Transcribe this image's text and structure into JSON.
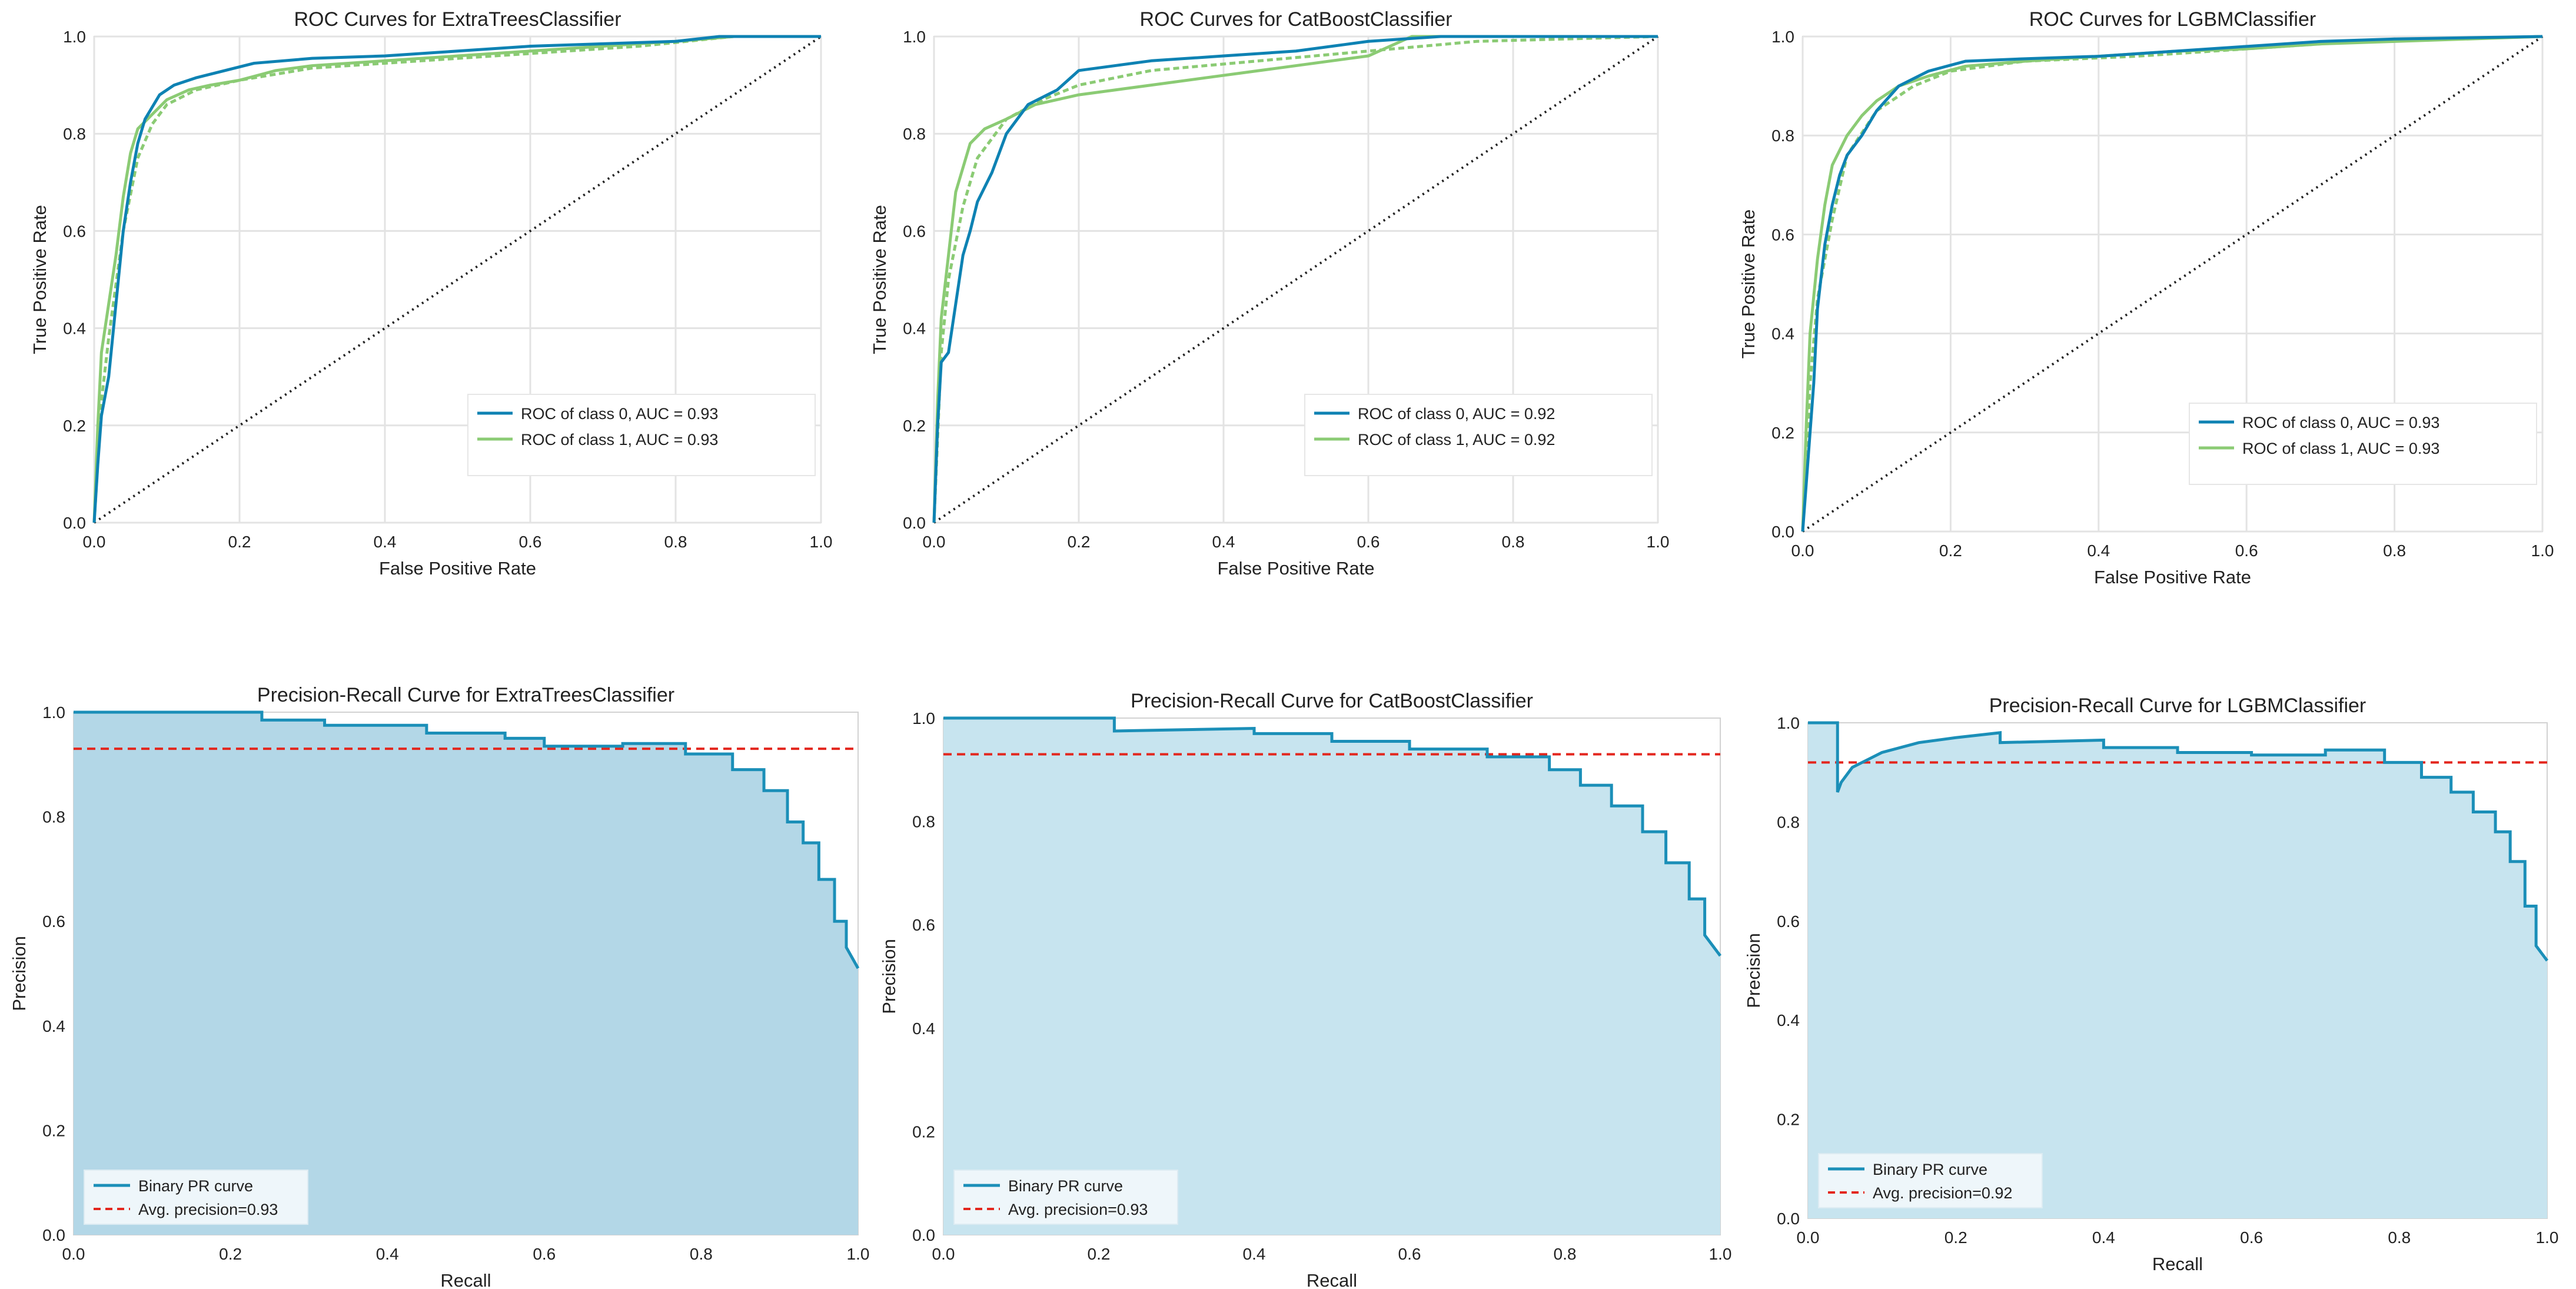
{
  "palette": {
    "class0": "#0e82b3",
    "class1": "#8bcb74",
    "diagonal": "#222222",
    "grid": "#e3e3e3",
    "avg": "#e3261d",
    "pr_line": "#1b8fb8",
    "pr_fill_dark": "#b3d7e7",
    "pr_fill_light": "#c7e4ef"
  },
  "chart_data": [
    {
      "id": "roc-extratrees",
      "type": "line",
      "title": "ROC Curves for ExtraTreesClassifier",
      "xlabel": "False Positive Rate",
      "ylabel": "True Positive Rate",
      "xlim": [
        0,
        1
      ],
      "ylim": [
        0,
        1
      ],
      "xticks": [
        "0.0",
        "0.2",
        "0.4",
        "0.6",
        "0.8",
        "1.0"
      ],
      "yticks": [
        "0.0",
        "0.2",
        "0.4",
        "0.6",
        "0.8",
        "1.0"
      ],
      "grid": true,
      "legend": "lower-right",
      "series": [
        {
          "name": "ROC of class 0, AUC = 0.93",
          "color_key": "class0",
          "dash": "",
          "x": [
            0,
            0.005,
            0.01,
            0.02,
            0.03,
            0.04,
            0.05,
            0.06,
            0.07,
            0.09,
            0.11,
            0.14,
            0.18,
            0.22,
            0.3,
            0.4,
            0.5,
            0.6,
            0.7,
            0.8,
            0.86,
            1.0
          ],
          "y": [
            0,
            0.12,
            0.22,
            0.3,
            0.45,
            0.6,
            0.7,
            0.78,
            0.83,
            0.88,
            0.9,
            0.915,
            0.93,
            0.945,
            0.955,
            0.96,
            0.97,
            0.98,
            0.985,
            0.99,
            1.0,
            1.0
          ]
        },
        {
          "name": "ROC of class 1, AUC = 0.93",
          "color_key": "class1",
          "dash": "",
          "x": [
            0,
            0.005,
            0.01,
            0.02,
            0.03,
            0.04,
            0.05,
            0.06,
            0.08,
            0.1,
            0.13,
            0.16,
            0.2,
            0.25,
            0.3,
            0.4,
            0.5,
            0.6,
            0.7,
            0.8,
            0.88,
            1.0
          ],
          "y": [
            0,
            0.2,
            0.35,
            0.45,
            0.55,
            0.67,
            0.76,
            0.81,
            0.84,
            0.87,
            0.89,
            0.9,
            0.91,
            0.93,
            0.94,
            0.95,
            0.96,
            0.97,
            0.98,
            0.99,
            1.0,
            1.0
          ]
        },
        {
          "name": "",
          "color_key": "class1",
          "dash": "10,6",
          "x": [
            0,
            0.01,
            0.02,
            0.04,
            0.06,
            0.08,
            0.1,
            0.14,
            0.2,
            0.3,
            0.45,
            0.6,
            0.75,
            0.88,
            1.0
          ],
          "y": [
            0,
            0.25,
            0.38,
            0.6,
            0.75,
            0.82,
            0.86,
            0.89,
            0.91,
            0.935,
            0.95,
            0.965,
            0.98,
            1.0,
            1.0
          ]
        }
      ],
      "diagonal": true
    },
    {
      "id": "roc-catboost",
      "type": "line",
      "title": "ROC Curves for CatBoostClassifier",
      "xlabel": "False Positive Rate",
      "ylabel": "True Positive Rate",
      "xlim": [
        0,
        1
      ],
      "ylim": [
        0,
        1
      ],
      "xticks": [
        "0.0",
        "0.2",
        "0.4",
        "0.6",
        "0.8",
        "1.0"
      ],
      "yticks": [
        "0.0",
        "0.2",
        "0.4",
        "0.6",
        "0.8",
        "1.0"
      ],
      "grid": true,
      "legend": "lower-right",
      "series": [
        {
          "name": "ROC of class 0, AUC = 0.92",
          "color_key": "class0",
          "dash": "",
          "x": [
            0,
            0.005,
            0.01,
            0.02,
            0.03,
            0.04,
            0.05,
            0.06,
            0.08,
            0.1,
            0.13,
            0.17,
            0.2,
            0.25,
            0.3,
            0.4,
            0.5,
            0.6,
            0.7,
            0.8,
            1.0
          ],
          "y": [
            0,
            0.2,
            0.33,
            0.35,
            0.45,
            0.55,
            0.6,
            0.66,
            0.72,
            0.8,
            0.86,
            0.89,
            0.93,
            0.94,
            0.95,
            0.96,
            0.97,
            0.99,
            1.0,
            1.0,
            1.0
          ]
        },
        {
          "name": "ROC of class 1, AUC = 0.92",
          "color_key": "class1",
          "dash": "",
          "x": [
            0,
            0.005,
            0.01,
            0.02,
            0.03,
            0.05,
            0.07,
            0.1,
            0.14,
            0.2,
            0.25,
            0.3,
            0.4,
            0.5,
            0.6,
            0.66,
            0.8,
            1.0
          ],
          "y": [
            0,
            0.25,
            0.42,
            0.55,
            0.68,
            0.78,
            0.81,
            0.83,
            0.86,
            0.88,
            0.89,
            0.9,
            0.92,
            0.94,
            0.96,
            1.0,
            1.0,
            1.0
          ]
        },
        {
          "name": "",
          "color_key": "class1",
          "dash": "10,6",
          "x": [
            0,
            0.01,
            0.02,
            0.04,
            0.06,
            0.1,
            0.15,
            0.2,
            0.3,
            0.45,
            0.6,
            0.75,
            1.0
          ],
          "y": [
            0,
            0.35,
            0.5,
            0.65,
            0.75,
            0.83,
            0.87,
            0.9,
            0.93,
            0.95,
            0.97,
            0.99,
            1.0
          ]
        }
      ],
      "diagonal": true
    },
    {
      "id": "roc-lgbm",
      "type": "line",
      "title": "ROC Curves for LGBMClassifier",
      "xlabel": "False Positive Rate",
      "ylabel": "True Positive Rate",
      "xlim": [
        0,
        1
      ],
      "ylim": [
        0,
        1
      ],
      "xticks": [
        "0.0",
        "0.2",
        "0.4",
        "0.6",
        "0.8",
        "1.0"
      ],
      "yticks": [
        "0.0",
        "0.2",
        "0.4",
        "0.6",
        "0.8",
        "1.0"
      ],
      "grid": true,
      "legend": "lower-right",
      "series": [
        {
          "name": "ROC of class 0, AUC = 0.93",
          "color_key": "class0",
          "dash": "",
          "x": [
            0,
            0.005,
            0.01,
            0.015,
            0.02,
            0.03,
            0.04,
            0.05,
            0.06,
            0.08,
            0.1,
            0.13,
            0.17,
            0.22,
            0.3,
            0.4,
            0.5,
            0.6,
            0.7,
            0.8,
            1.0
          ],
          "y": [
            0,
            0.1,
            0.2,
            0.3,
            0.45,
            0.58,
            0.66,
            0.72,
            0.76,
            0.8,
            0.85,
            0.9,
            0.93,
            0.95,
            0.955,
            0.96,
            0.97,
            0.98,
            0.99,
            0.995,
            1.0
          ]
        },
        {
          "name": "ROC of class 1, AUC = 0.93",
          "color_key": "class1",
          "dash": "",
          "x": [
            0,
            0.005,
            0.01,
            0.02,
            0.03,
            0.04,
            0.06,
            0.08,
            0.1,
            0.13,
            0.17,
            0.22,
            0.3,
            0.4,
            0.5,
            0.6,
            0.7,
            0.8,
            1.0
          ],
          "y": [
            0,
            0.22,
            0.4,
            0.55,
            0.66,
            0.74,
            0.8,
            0.84,
            0.87,
            0.9,
            0.92,
            0.94,
            0.95,
            0.96,
            0.97,
            0.975,
            0.985,
            0.99,
            1.0
          ]
        },
        {
          "name": "",
          "color_key": "class1",
          "dash": "10,6",
          "x": [
            0,
            0.01,
            0.02,
            0.04,
            0.06,
            0.1,
            0.15,
            0.2,
            0.3,
            0.45,
            0.6,
            0.75,
            1.0
          ],
          "y": [
            0,
            0.3,
            0.47,
            0.63,
            0.76,
            0.85,
            0.9,
            0.93,
            0.95,
            0.96,
            0.975,
            0.99,
            1.0
          ]
        }
      ],
      "diagonal": true
    },
    {
      "id": "pr-extratrees",
      "type": "area",
      "title": "Precision-Recall Curve for ExtraTreesClassifier",
      "xlabel": "Recall",
      "ylabel": "Precision",
      "xlim": [
        0,
        1
      ],
      "ylim": [
        0,
        1
      ],
      "xticks": [
        "0.0",
        "0.2",
        "0.4",
        "0.6",
        "0.8",
        "1.0"
      ],
      "yticks": [
        "0.0",
        "0.2",
        "0.4",
        "0.6",
        "0.8",
        "1.0"
      ],
      "grid": false,
      "legend": "lower-left",
      "fill_key": "pr_fill_dark",
      "pr_curve": {
        "name": "Binary PR curve",
        "recall": [
          0,
          0.24,
          0.24,
          0.32,
          0.32,
          0.45,
          0.45,
          0.55,
          0.55,
          0.6,
          0.6,
          0.7,
          0.7,
          0.78,
          0.78,
          0.84,
          0.84,
          0.88,
          0.88,
          0.91,
          0.91,
          0.93,
          0.93,
          0.95,
          0.95,
          0.97,
          0.97,
          0.985,
          0.985,
          1.0
        ],
        "precision": [
          1.0,
          1.0,
          0.985,
          0.985,
          0.975,
          0.975,
          0.96,
          0.96,
          0.95,
          0.95,
          0.935,
          0.935,
          0.94,
          0.94,
          0.92,
          0.92,
          0.89,
          0.89,
          0.85,
          0.85,
          0.79,
          0.79,
          0.75,
          0.75,
          0.68,
          0.68,
          0.6,
          0.6,
          0.55,
          0.51
        ]
      },
      "avg_precision": {
        "label": "Avg. precision=0.93",
        "value": 0.93
      }
    },
    {
      "id": "pr-catboost",
      "type": "area",
      "title": "Precision-Recall Curve for CatBoostClassifier",
      "xlabel": "Recall",
      "ylabel": "Precision",
      "xlim": [
        0,
        1
      ],
      "ylim": [
        0,
        1
      ],
      "xticks": [
        "0.0",
        "0.2",
        "0.4",
        "0.6",
        "0.8",
        "1.0"
      ],
      "yticks": [
        "0.0",
        "0.2",
        "0.4",
        "0.6",
        "0.8",
        "1.0"
      ],
      "grid": false,
      "legend": "lower-left",
      "fill_key": "pr_fill_light",
      "pr_curve": {
        "name": "Binary PR curve",
        "recall": [
          0,
          0.22,
          0.22,
          0.4,
          0.4,
          0.5,
          0.5,
          0.6,
          0.6,
          0.7,
          0.7,
          0.78,
          0.78,
          0.82,
          0.82,
          0.86,
          0.86,
          0.9,
          0.9,
          0.93,
          0.93,
          0.96,
          0.96,
          0.98,
          0.98,
          1.0
        ],
        "precision": [
          1.0,
          1.0,
          0.975,
          0.98,
          0.97,
          0.97,
          0.955,
          0.955,
          0.94,
          0.94,
          0.925,
          0.925,
          0.9,
          0.9,
          0.87,
          0.87,
          0.83,
          0.83,
          0.78,
          0.78,
          0.72,
          0.72,
          0.65,
          0.65,
          0.58,
          0.54
        ]
      },
      "avg_precision": {
        "label": "Avg. precision=0.93",
        "value": 0.93
      }
    },
    {
      "id": "pr-lgbm",
      "type": "area",
      "title": "Precision-Recall Curve for LGBMClassifier",
      "xlabel": "Recall",
      "ylabel": "Precision",
      "xlim": [
        0,
        1
      ],
      "ylim": [
        0,
        1
      ],
      "xticks": [
        "0.0",
        "0.2",
        "0.4",
        "0.6",
        "0.8",
        "1.0"
      ],
      "yticks": [
        "0.0",
        "0.2",
        "0.4",
        "0.6",
        "0.8",
        "1.0"
      ],
      "grid": false,
      "legend": "lower-left",
      "fill_key": "pr_fill_light",
      "pr_curve": {
        "name": "Binary PR curve",
        "recall": [
          0,
          0.04,
          0.04,
          0.045,
          0.06,
          0.1,
          0.15,
          0.2,
          0.26,
          0.26,
          0.4,
          0.4,
          0.5,
          0.5,
          0.6,
          0.6,
          0.7,
          0.7,
          0.78,
          0.78,
          0.83,
          0.83,
          0.87,
          0.87,
          0.9,
          0.9,
          0.93,
          0.93,
          0.95,
          0.95,
          0.97,
          0.97,
          0.985,
          0.985,
          1.0
        ],
        "precision": [
          1.0,
          1.0,
          0.86,
          0.88,
          0.91,
          0.94,
          0.96,
          0.97,
          0.98,
          0.96,
          0.965,
          0.95,
          0.95,
          0.94,
          0.94,
          0.935,
          0.935,
          0.945,
          0.945,
          0.92,
          0.92,
          0.89,
          0.89,
          0.86,
          0.86,
          0.82,
          0.82,
          0.78,
          0.78,
          0.72,
          0.72,
          0.63,
          0.63,
          0.55,
          0.52
        ]
      },
      "avg_precision": {
        "label": "Avg. precision=0.92",
        "value": 0.92
      }
    }
  ]
}
